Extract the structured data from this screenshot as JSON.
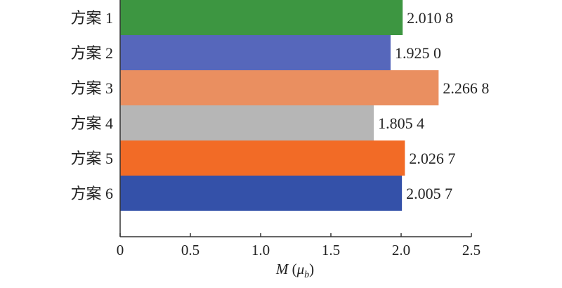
{
  "chart_data": {
    "type": "bar",
    "orientation": "horizontal",
    "categories": [
      "方案 1",
      "方案 2",
      "方案 3",
      "方案 4",
      "方案 5",
      "方案 6"
    ],
    "values": [
      2.0108,
      1.925,
      2.2668,
      1.8054,
      2.0267,
      2.0057
    ],
    "value_labels": [
      "2.010 8",
      "1.925 0",
      "2.266 8",
      "1.805 4",
      "2.026 7",
      "2.005 7"
    ],
    "colors": [
      "#3d9641",
      "#5667bb",
      "#ea8f60",
      "#b6b6b6",
      "#f26b26",
      "#3451a9"
    ],
    "xlabel": "M",
    "xlabel_unit": "μ",
    "xlabel_unit_sub": "b",
    "xlim": [
      0,
      2.5
    ],
    "xticks": [
      0,
      0.5,
      1.0,
      1.5,
      2.0,
      2.5
    ],
    "xtick_labels": [
      "0",
      "0.5",
      "1.0",
      "1.5",
      "2.0",
      "2.5"
    ],
    "grid": false,
    "legend": "none"
  }
}
